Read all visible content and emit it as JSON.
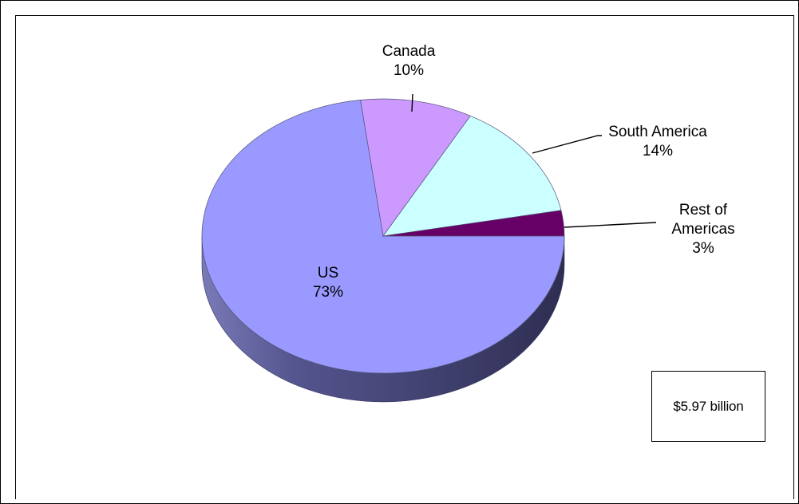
{
  "chart_data": {
    "type": "pie",
    "title": "",
    "categories": [
      "US",
      "Canada",
      "South America",
      "Rest of Americas"
    ],
    "values": [
      73,
      10,
      14,
      3
    ],
    "labels": [
      [
        "US",
        "73%"
      ],
      [
        "Canada",
        "10%"
      ],
      [
        "South America",
        "14%"
      ],
      [
        "Rest of",
        "Americas",
        "3%"
      ]
    ],
    "colors": [
      "#9999ff",
      "#cc99ff",
      "#ccffff",
      "#660066"
    ],
    "side_colors": [
      "#4d4d8f",
      "#7a5c99",
      "#7a9999",
      "#3d003d"
    ],
    "style": "3d-tilted",
    "legend": "none"
  },
  "annotation": "$5.97 billion"
}
